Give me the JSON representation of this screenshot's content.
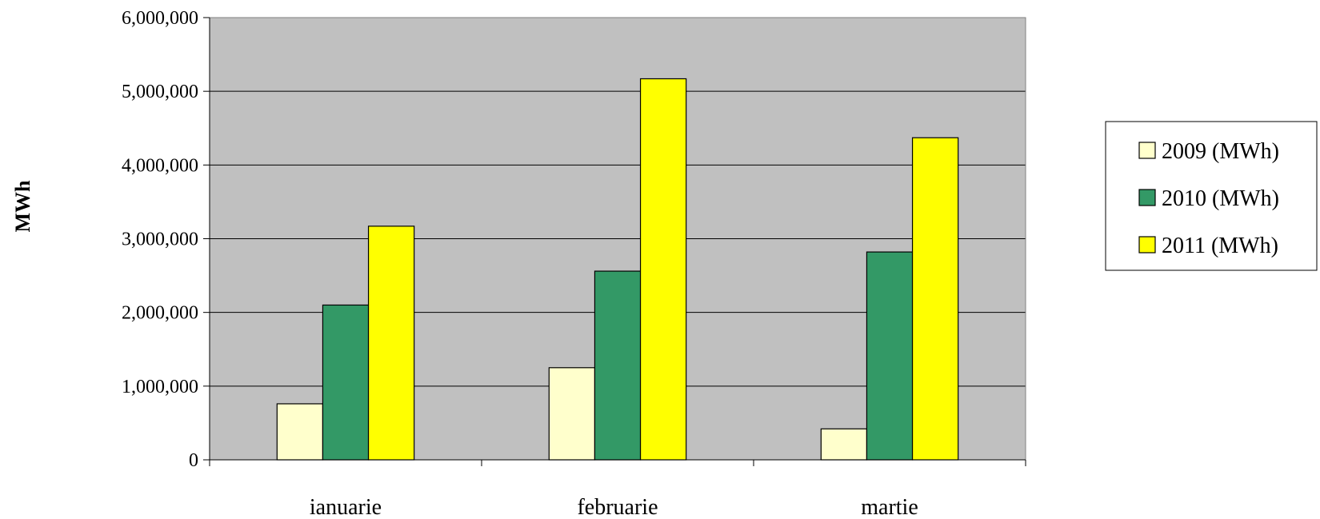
{
  "chart_data": {
    "type": "bar",
    "title": "",
    "xlabel": "",
    "ylabel": "MWh",
    "categories": [
      "ianuarie",
      "februarie",
      "martie"
    ],
    "series": [
      {
        "name": "2009 (MWh)",
        "color": "#ffffcc",
        "values": [
          760000,
          1250000,
          420000
        ]
      },
      {
        "name": "2010 (MWh)",
        "color": "#339966",
        "values": [
          2100000,
          2560000,
          2820000
        ]
      },
      {
        "name": "2011 (MWh)",
        "color": "#ffff00",
        "values": [
          3170000,
          5170000,
          4370000
        ]
      }
    ],
    "ylim": [
      0,
      6000000
    ],
    "yticks": [
      0,
      1000000,
      2000000,
      3000000,
      4000000,
      5000000,
      6000000
    ],
    "ytick_labels": [
      "0",
      "1,000,000",
      "2,000,000",
      "3,000,000",
      "4,000,000",
      "5,000,000",
      "6,000,000"
    ],
    "plot_background": "#c0c0c0",
    "grid": true,
    "legend_position": "right"
  }
}
